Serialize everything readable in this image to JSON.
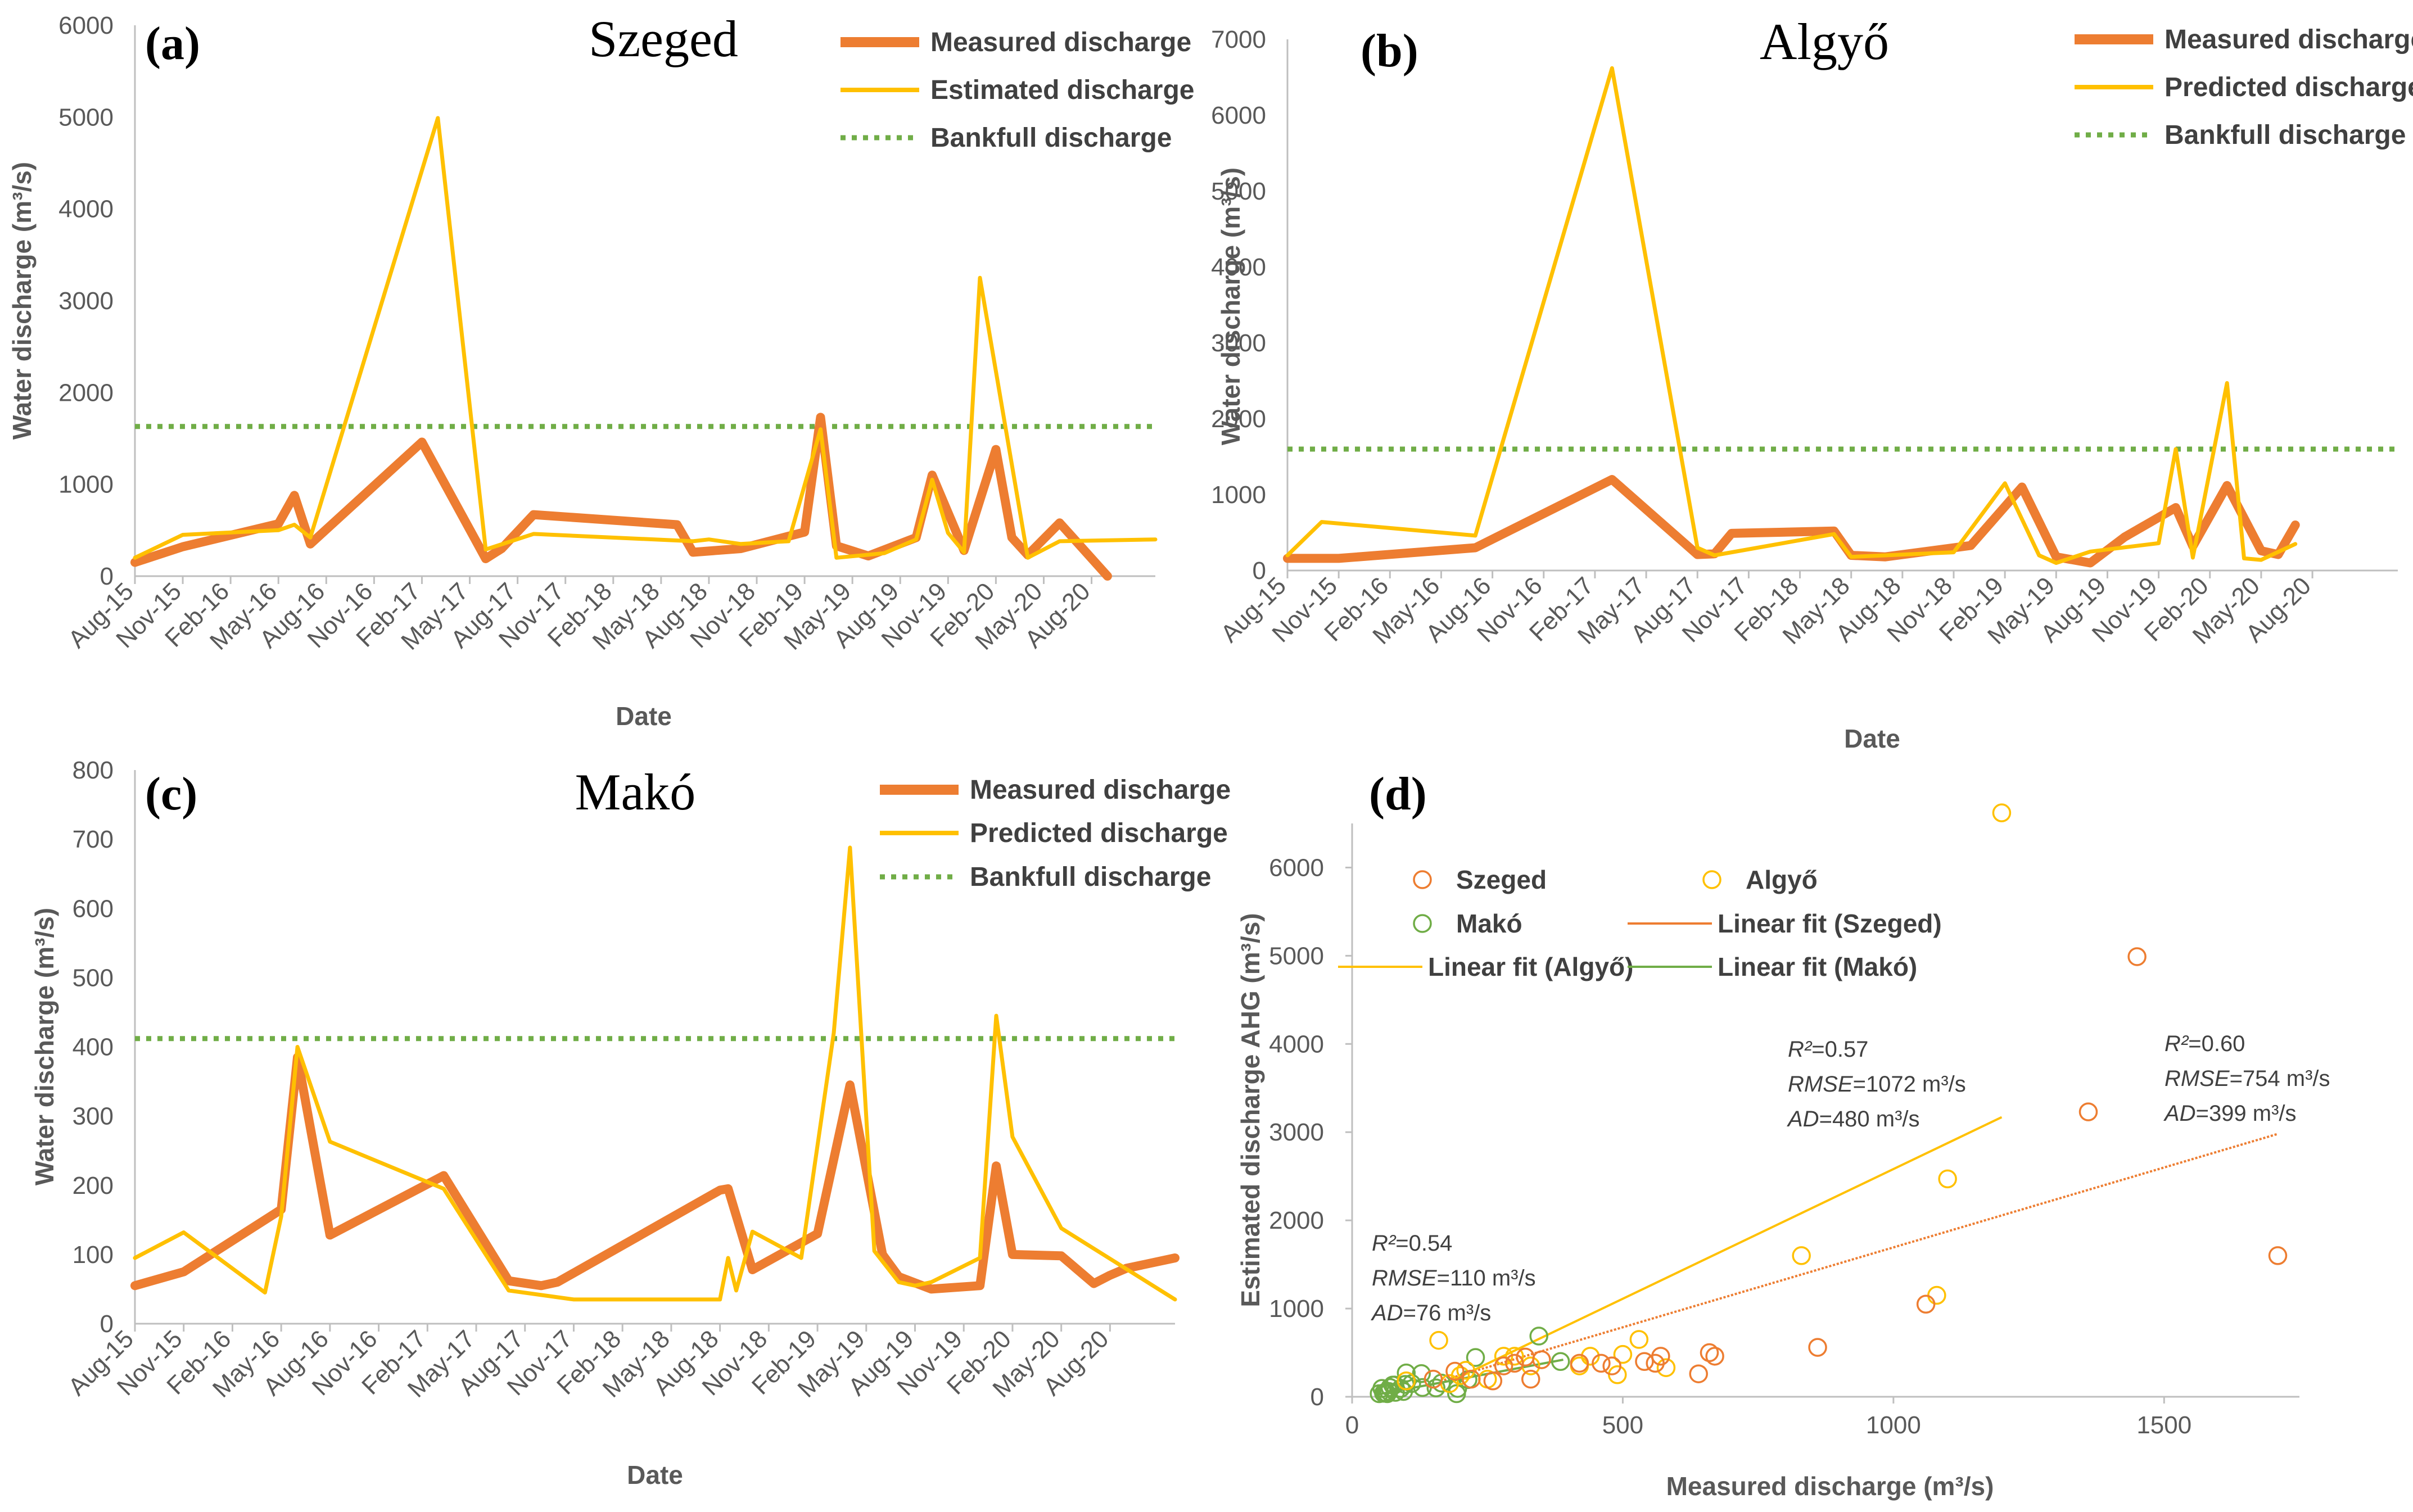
{
  "colors": {
    "measured": "#ED7D31",
    "estimated": "#FFC000",
    "bankfull": "#70AD47",
    "mako": "#70AD47",
    "axis": "#BFBFBF",
    "text": "#595959"
  },
  "chart_data": [
    {
      "type": "line",
      "panel": "(a)",
      "title": "Szeged",
      "xlabel": "Date",
      "ylabel": "Water discharge (m³/s)",
      "ylim": [
        0,
        6000
      ],
      "yticks": [
        "0",
        "1000",
        "2000",
        "3000",
        "4000",
        "5000",
        "6000"
      ],
      "date_labels": [
        "Aug-15",
        "Nov-15",
        "Feb-16",
        "May-16",
        "Aug-16",
        "Nov-16",
        "Feb-17",
        "May-17",
        "Aug-17",
        "Nov-17",
        "Feb-18",
        "May-18",
        "Aug-18",
        "Nov-18",
        "Feb-19",
        "May-19",
        "Aug-19",
        "Nov-19",
        "Feb-20",
        "May-20",
        "Aug-20"
      ],
      "x_range_months": [
        0,
        64
      ],
      "legend": [
        "Measured discharge",
        "Estimated discharge",
        "Bankfull discharge"
      ],
      "bankfull": 1630,
      "series": [
        {
          "name": "Measured discharge",
          "x": [
            0,
            3,
            9,
            10,
            11,
            18,
            22,
            23,
            25,
            34,
            35,
            38,
            42,
            43,
            44,
            46,
            49,
            50,
            52,
            54,
            55,
            56,
            58,
            61,
            62,
            63,
            64
          ],
          "values": [
            150,
            320,
            570,
            880,
            350,
            1460,
            190,
            300,
            670,
            560,
            260,
            300,
            480,
            1730,
            330,
            220,
            420,
            1100,
            280,
            1380,
            420,
            230,
            580,
            0,
            0,
            0,
            0
          ]
        },
        {
          "name": "Estimated discharge",
          "x": [
            0,
            3,
            9,
            10,
            11,
            19,
            22,
            25,
            35,
            36,
            38,
            41,
            43,
            44,
            47,
            49,
            50,
            51,
            52,
            53,
            56,
            58,
            64
          ],
          "values": [
            200,
            450,
            500,
            560,
            420,
            4990,
            290,
            460,
            380,
            400,
            350,
            380,
            1600,
            200,
            250,
            400,
            1050,
            470,
            260,
            3250,
            200,
            380,
            400
          ]
        }
      ]
    },
    {
      "type": "line",
      "panel": "(b)",
      "title": "Algyő",
      "xlabel": "Date",
      "ylabel": "Water discharge (m³/s)",
      "ylim": [
        0,
        7000
      ],
      "yticks": [
        "0",
        "1000",
        "2000",
        "3000",
        "4000",
        "5000",
        "6000",
        "7000"
      ],
      "date_labels": [
        "Aug-15",
        "Nov-15",
        "Feb-16",
        "May-16",
        "Aug-16",
        "Nov-16",
        "Feb-17",
        "May-17",
        "Aug-17",
        "Nov-17",
        "Feb-18",
        "May-18",
        "Aug-18",
        "Nov-18",
        "Feb-19",
        "May-19",
        "Aug-19",
        "Nov-19",
        "Feb-20",
        "May-20",
        "Aug-20"
      ],
      "x_range_months": [
        0,
        65
      ],
      "legend": [
        "Measured discharge",
        "Predicted discharge",
        "Bankfull discharge"
      ],
      "bankfull": 1600,
      "series": [
        {
          "name": "Measured discharge",
          "x": [
            0,
            3,
            11,
            19,
            24,
            25,
            26,
            32,
            33,
            35,
            40,
            43,
            45,
            47,
            49,
            52,
            53,
            55,
            57,
            58,
            59,
            63,
            64,
            65
          ],
          "values": [
            160,
            160,
            300,
            1200,
            210,
            220,
            490,
            520,
            200,
            180,
            330,
            1100,
            180,
            100,
            440,
            830,
            320,
            1120,
            260,
            210,
            600,
            0,
            0,
            0
          ]
        },
        {
          "name": "Predicted discharge",
          "x": [
            0,
            2,
            11,
            19,
            24,
            25,
            32,
            33,
            35,
            39,
            42,
            44,
            45,
            47,
            51,
            52,
            53,
            55,
            56,
            57,
            59,
            63,
            64,
            65
          ],
          "values": [
            200,
            640,
            460,
            6620,
            300,
            200,
            480,
            180,
            200,
            240,
            1150,
            200,
            100,
            250,
            360,
            1600,
            170,
            2470,
            160,
            140,
            350,
            0,
            0,
            0
          ]
        }
      ]
    },
    {
      "type": "line",
      "panel": "(c)",
      "title": "Makó",
      "xlabel": "Date",
      "ylabel": "Water discharge (m³/s)",
      "ylim": [
        0,
        800
      ],
      "yticks": [
        "0",
        "100",
        "200",
        "300",
        "400",
        "500",
        "600",
        "700",
        "800"
      ],
      "date_labels": [
        "Aug-15",
        "Nov-15",
        "Feb-16",
        "May-16",
        "Aug-16",
        "Nov-16",
        "Feb-17",
        "May-17",
        "Aug-17",
        "Nov-17",
        "Feb-18",
        "May-18",
        "Aug-18",
        "Nov-18",
        "Feb-19",
        "May-19",
        "Aug-19",
        "Nov-19",
        "Feb-20",
        "May-20",
        "Aug-20"
      ],
      "x_range_months": [
        0,
        64
      ],
      "legend": [
        "Measured discharge",
        "Predicted discharge",
        "Bankfull discharge"
      ],
      "bankfull": 412,
      "series": [
        {
          "name": "Measured discharge",
          "x": [
            0,
            3,
            9,
            10,
            12,
            19,
            23,
            25,
            26,
            36,
            36.5,
            38,
            42,
            44,
            46,
            47,
            49,
            52,
            53,
            54,
            57,
            59,
            60,
            61,
            64
          ],
          "values": [
            55,
            75,
            165,
            385,
            128,
            214,
            62,
            55,
            60,
            193,
            195,
            78,
            130,
            345,
            100,
            68,
            50,
            55,
            228,
            100,
            98,
            58,
            70,
            80,
            95
          ]
        },
        {
          "name": "Predicted discharge",
          "x": [
            0,
            3,
            8,
            9,
            10,
            12,
            19,
            23,
            27,
            36,
            36.5,
            37,
            38,
            41,
            43,
            44,
            45.5,
            47,
            48,
            49,
            52,
            53,
            54,
            57,
            64
          ],
          "values": [
            95,
            132,
            45,
            155,
            400,
            263,
            195,
            48,
            35,
            35,
            95,
            48,
            133,
            95,
            420,
            688,
            105,
            60,
            55,
            60,
            95,
            445,
            270,
            138,
            35
          ]
        }
      ]
    },
    {
      "type": "scatter",
      "panel": "(d)",
      "xlabel": "Measured discharge (m³/s)",
      "ylabel": "Estimated discharge  AHG (m³/s)",
      "xlim": [
        0,
        1750
      ],
      "ylim": [
        0,
        6500
      ],
      "xticks": [
        "0",
        "500",
        "1000",
        "1500"
      ],
      "yticks": [
        "0",
        "1000",
        "2000",
        "3000",
        "4000",
        "5000",
        "6000"
      ],
      "legend": [
        "Szeged",
        "Algyő",
        "Makó",
        "Linear fit (Szeged)",
        "Linear fit (Algyő)",
        "Linear fit  (Makó)"
      ],
      "series": [
        {
          "name": "Szeged",
          "points": [
            [
              150,
              200
            ],
            [
              190,
              290
            ],
            [
              220,
              200
            ],
            [
              260,
              180
            ],
            [
              280,
              350
            ],
            [
              300,
              380
            ],
            [
              320,
              450
            ],
            [
              330,
              200
            ],
            [
              350,
              420
            ],
            [
              420,
              380
            ],
            [
              460,
              380
            ],
            [
              480,
              350
            ],
            [
              540,
              400
            ],
            [
              560,
              380
            ],
            [
              570,
              460
            ],
            [
              640,
              260
            ],
            [
              660,
              500
            ],
            [
              670,
              460
            ],
            [
              860,
              560
            ],
            [
              1060,
              1050
            ],
            [
              1360,
              3230
            ],
            [
              1450,
              4990
            ],
            [
              1710,
              1600
            ]
          ]
        },
        {
          "name": "Algyő",
          "points": [
            [
              100,
              180
            ],
            [
              160,
              640
            ],
            [
              180,
              150
            ],
            [
              200,
              240
            ],
            [
              210,
              300
            ],
            [
              250,
              200
            ],
            [
              280,
              460
            ],
            [
              300,
              460
            ],
            [
              330,
              350
            ],
            [
              420,
              350
            ],
            [
              440,
              460
            ],
            [
              490,
              250
            ],
            [
              500,
              480
            ],
            [
              530,
              650
            ],
            [
              580,
              330
            ],
            [
              830,
              1600
            ],
            [
              1080,
              1150
            ],
            [
              1100,
              2470
            ],
            [
              1200,
              6620
            ]
          ]
        },
        {
          "name": "Makó",
          "points": [
            [
              50,
              35
            ],
            [
              55,
              95
            ],
            [
              58,
              40
            ],
            [
              60,
              48
            ],
            [
              62,
              45
            ],
            [
              65,
              35
            ],
            [
              68,
              60
            ],
            [
              70,
              105
            ],
            [
              75,
              132
            ],
            [
              78,
              133
            ],
            [
              80,
              50
            ],
            [
              90,
              95
            ],
            [
              95,
              60
            ],
            [
              98,
              140
            ],
            [
              100,
              270
            ],
            [
              110,
              150
            ],
            [
              128,
              263
            ],
            [
              130,
              105
            ],
            [
              155,
              100
            ],
            [
              165,
              155
            ],
            [
              193,
              35
            ],
            [
              195,
              95
            ],
            [
              214,
              195
            ],
            [
              228,
              445
            ],
            [
              345,
              688
            ],
            [
              385,
              400
            ]
          ]
        }
      ],
      "fits": [
        {
          "name": "Linear fit (Szeged)",
          "x": [
            170,
            1710
          ],
          "y": [
            190,
            2980
          ]
        },
        {
          "name": "Linear fit (Algyő)",
          "x": [
            180,
            1200
          ],
          "y": [
            170,
            3170
          ]
        },
        {
          "name": "Linear fit  (Makó)",
          "x": [
            50,
            390
          ],
          "y": [
            30,
            420
          ]
        }
      ],
      "annotations": [
        {
          "id": "mako",
          "r2": "=0.54",
          "rmse": "=110 m³/s",
          "ad": "=76 m³/s"
        },
        {
          "id": "algyo",
          "r2": "=0.57",
          "rmse": "=1072 m³/s",
          "ad": "=480 m³/s"
        },
        {
          "id": "szeged",
          "r2": "=0.60",
          "rmse": "=754 m³/s",
          "ad": "=399 m³/s"
        }
      ],
      "annotation_labels": {
        "r2": "R²",
        "rmse": "RMSE",
        "ad": "AD"
      }
    }
  ]
}
